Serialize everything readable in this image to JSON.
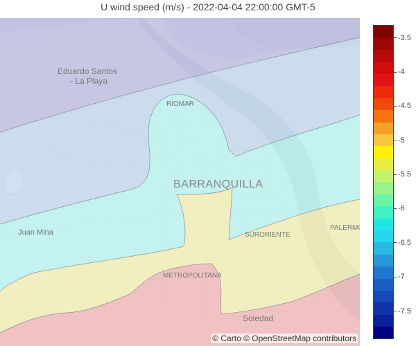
{
  "title": "U wind speed (m/s) - 2022-04-04 22:00:00 GMT-5",
  "attribution": "© Carto © OpenStreetMap contributors",
  "places": {
    "eduardo_santos_line1": "Eduardo Santos",
    "eduardo_santos_line2": "- La Playa",
    "riomar": "RIOMAR",
    "barranquilla": "BARRANQUILLA",
    "juan_mina": "Juan Mina",
    "suroriente": "SURORIENTE",
    "palermo": "PALERMO",
    "metropolitana": "METROPOLITANA",
    "soledad": "Soledad"
  },
  "contour_colors": {
    "band_lt_-7": "#f3b7b7",
    "band_-7_-6.5": "#f4f3b5",
    "band_-6.5_-6": "#b7f6f4",
    "band_-6_-5.5": "#c2daf1",
    "band_gt_-5.5": "#bcbde4"
  },
  "colorscale": {
    "min": -7.9,
    "max": -3.3,
    "ticks": [
      "-3.5",
      "-4",
      "-4.5",
      "-5",
      "-5.5",
      "-6",
      "-6.5",
      "-7",
      "-7.5"
    ],
    "tick_values": [
      -3.5,
      -4,
      -4.5,
      -5,
      -5.5,
      -6,
      -6.5,
      -7,
      -7.5
    ],
    "colors": [
      "#000080",
      "#0a1f9a",
      "#0f33aa",
      "#1648b8",
      "#1a5fc4",
      "#1f78cf",
      "#2a95d8",
      "#27b9e3",
      "#25d4ee",
      "#1fe7e4",
      "#3ff2c8",
      "#6cf4a6",
      "#98f48a",
      "#c4f26c",
      "#e6ef3f",
      "#fff200",
      "#f7c640",
      "#f5a028",
      "#f57310",
      "#f04a08",
      "#ed2a0a",
      "#e31414",
      "#d10e0e",
      "#b90a0a",
      "#9e0606",
      "#800000"
    ]
  }
}
